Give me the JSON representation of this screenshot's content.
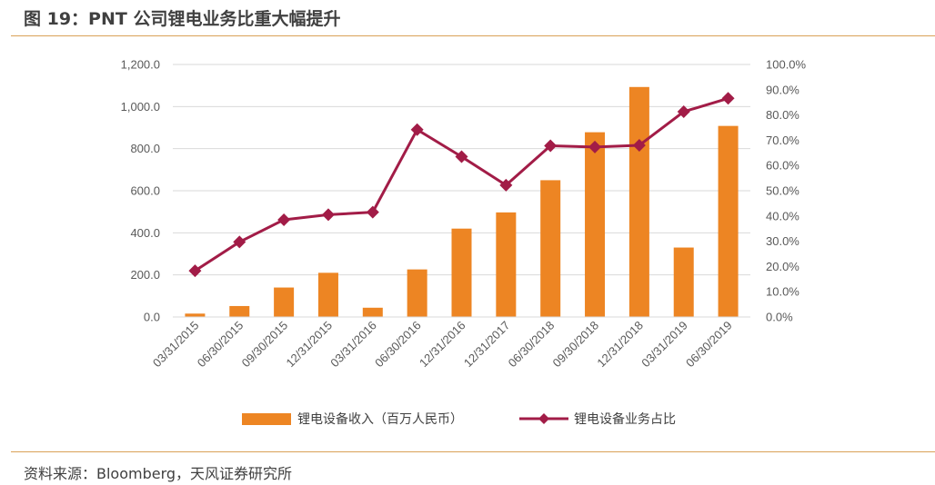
{
  "figure": {
    "title": "图 19：PNT 公司锂电业务比重大幅提升",
    "source": "资料来源：Bloomberg，天风证券研究所"
  },
  "colors": {
    "bar": "#ed8523",
    "line": "#a21c47",
    "grid": "#d9d9d9",
    "rule": "#d9a157"
  },
  "chart_data": {
    "type": "bar",
    "categories": [
      "03/31/2015",
      "06/30/2015",
      "09/30/2015",
      "12/31/2015",
      "03/31/2016",
      "06/30/2016",
      "12/31/2016",
      "12/31/2017",
      "06/30/2018",
      "09/30/2018",
      "12/31/2018",
      "03/31/2019",
      "06/30/2019"
    ],
    "series": [
      {
        "name": "锂电设备收入（百万人民币）",
        "type": "bar",
        "axis": "left",
        "values": [
          16,
          52,
          140,
          210,
          44,
          226,
          420,
          497,
          650,
          878,
          1093,
          330,
          908
        ]
      },
      {
        "name": "锂电设备业务占比",
        "type": "line",
        "axis": "right",
        "values": [
          18.3,
          29.7,
          38.5,
          40.5,
          41.5,
          74.2,
          63.5,
          52.2,
          67.8,
          67.3,
          68.0,
          81.3,
          86.6
        ]
      }
    ],
    "left_axis": {
      "ylim": [
        0,
        1200
      ],
      "ticks": [
        "0.0",
        "200.0",
        "400.0",
        "600.0",
        "800.0",
        "1,000.0",
        "1,200.0"
      ]
    },
    "right_axis": {
      "ylim": [
        0,
        100
      ],
      "ticks": [
        "0.0%",
        "10.0%",
        "20.0%",
        "30.0%",
        "40.0%",
        "50.0%",
        "60.0%",
        "70.0%",
        "80.0%",
        "90.0%",
        "100.0%"
      ]
    },
    "grid": true,
    "legend": {
      "position": "bottom"
    }
  }
}
